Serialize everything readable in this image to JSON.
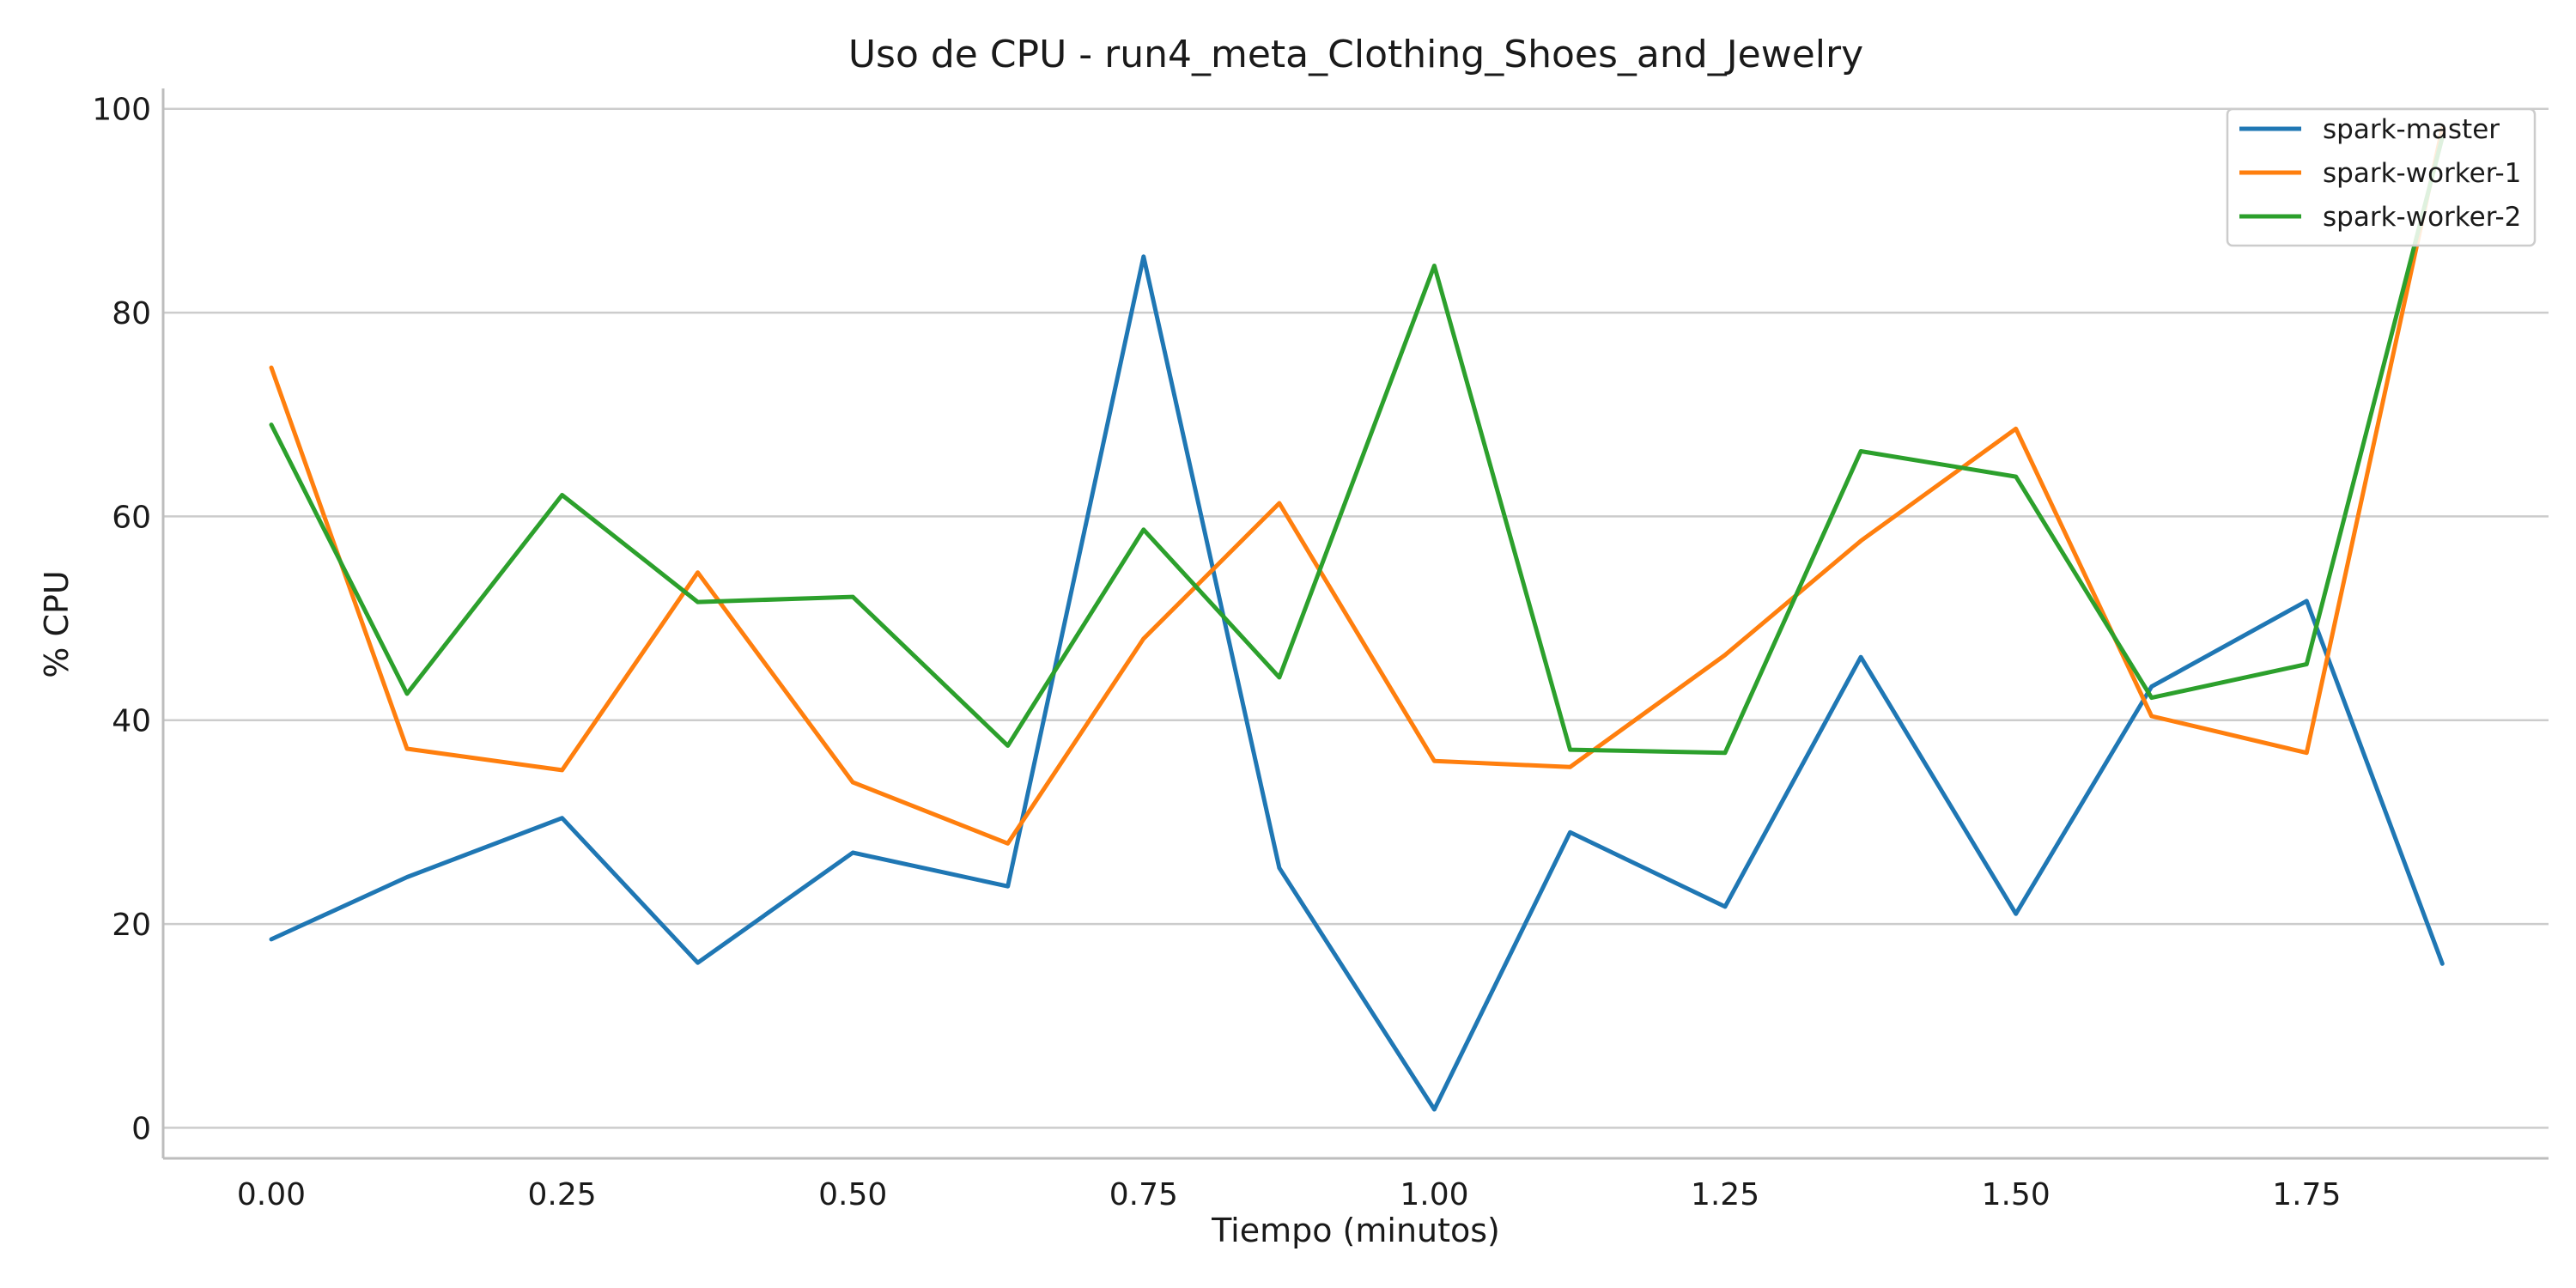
{
  "chart_data": {
    "type": "line",
    "title": "Uso de CPU - run4_meta_Clothing_Shoes_and_Jewelry",
    "xlabel": "Tiempo (minutos)",
    "ylabel": "% CPU",
    "xlim": [
      -0.093,
      1.958
    ],
    "ylim": [
      -3,
      102
    ],
    "xticks": [
      0.0,
      0.25,
      0.5,
      0.75,
      1.0,
      1.25,
      1.5,
      1.75
    ],
    "xtick_labels": [
      "0.00",
      "0.25",
      "0.50",
      "0.75",
      "1.00",
      "1.25",
      "1.50",
      "1.75"
    ],
    "yticks": [
      0,
      20,
      40,
      60,
      80,
      100
    ],
    "ytick_labels": [
      "0",
      "20",
      "40",
      "60",
      "80",
      "100"
    ],
    "grid": "y-axis only",
    "legend_position": "top-right",
    "x": [
      0.0,
      0.1167,
      0.25,
      0.3667,
      0.5,
      0.6333,
      0.75,
      0.8667,
      1.0,
      1.1167,
      1.25,
      1.3667,
      1.5,
      1.6167,
      1.75,
      1.8667
    ],
    "series": [
      {
        "name": "spark-master",
        "color": "#1f77b4",
        "values": [
          18.5,
          24.6,
          30.4,
          16.2,
          27.0,
          23.7,
          85.5,
          25.5,
          1.8,
          29.0,
          21.7,
          46.2,
          21.0,
          43.3,
          51.7,
          16.1
        ]
      },
      {
        "name": "spark-worker-1",
        "color": "#ff7f0e",
        "values": [
          74.6,
          37.2,
          35.1,
          54.5,
          33.9,
          27.9,
          48.0,
          61.3,
          36.0,
          35.4,
          46.4,
          57.6,
          68.6,
          40.4,
          36.8,
          98.1
        ]
      },
      {
        "name": "spark-worker-2",
        "color": "#2ca02c",
        "values": [
          69.0,
          42.6,
          62.1,
          51.6,
          52.1,
          37.5,
          58.7,
          44.2,
          84.6,
          37.1,
          36.8,
          66.4,
          63.9,
          42.2,
          45.5,
          97.2
        ]
      }
    ]
  }
}
